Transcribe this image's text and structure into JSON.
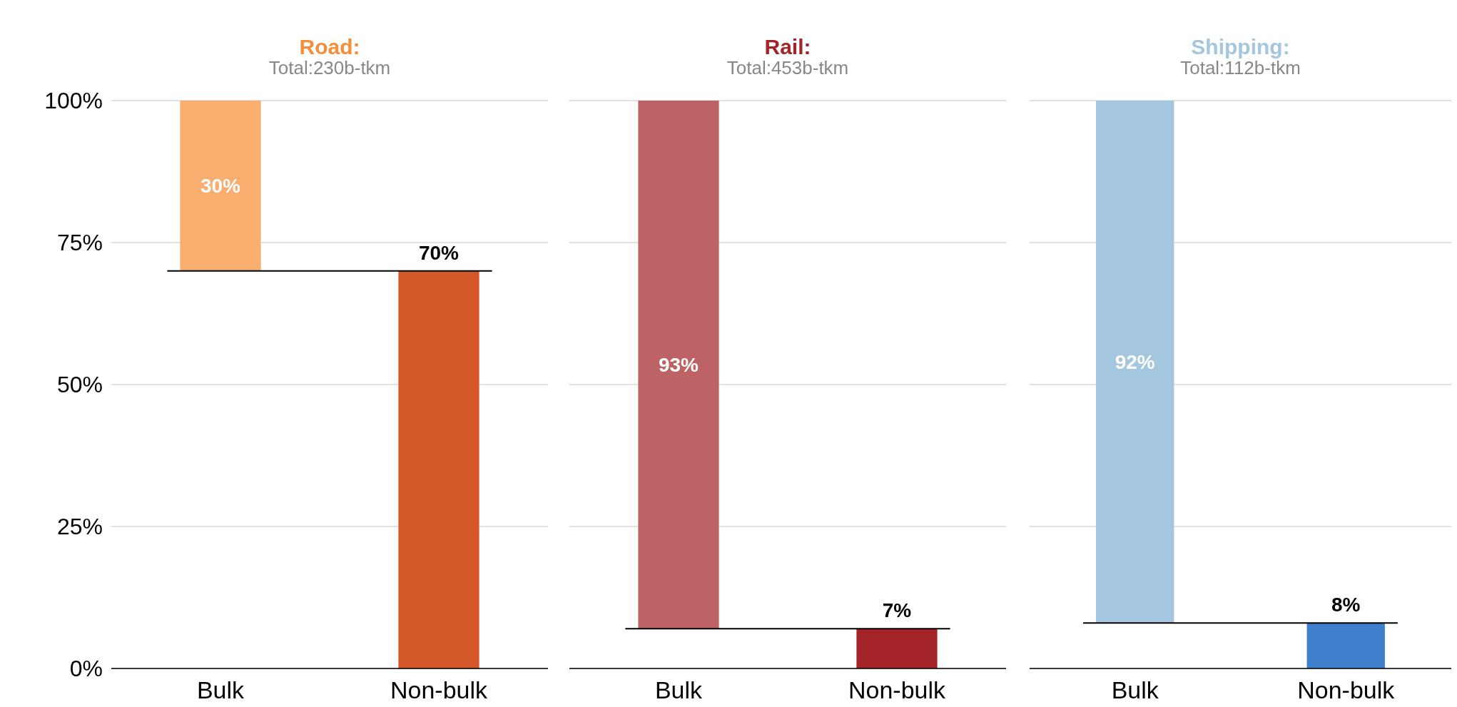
{
  "chart_data": [
    {
      "type": "bar",
      "title": "Road:",
      "subtitle": "Total:230b-tkm",
      "categories": [
        "Bulk",
        "Non-bulk"
      ],
      "values": [
        30,
        70
      ],
      "base": [
        70,
        0
      ],
      "colors": [
        "#f9ad6f",
        "#d4572a"
      ],
      "value_labels": [
        "30%",
        "70%"
      ],
      "ylim": [
        0,
        100
      ],
      "yticks": [
        {
          "value": 0,
          "label": "0%"
        },
        {
          "value": 25,
          "label": "25%"
        },
        {
          "value": 50,
          "label": "50%"
        },
        {
          "value": 75,
          "label": "75%"
        },
        {
          "value": 100,
          "label": "100%"
        }
      ],
      "grid": "y",
      "ref_lines": [
        {
          "axis": "y",
          "value": 70,
          "color": "#000000"
        }
      ]
    },
    {
      "type": "bar",
      "title": "Rail:",
      "subtitle": "Total:453b-tkm",
      "categories": [
        "Bulk",
        "Non-bulk"
      ],
      "values": [
        93,
        7
      ],
      "base": [
        7,
        0
      ],
      "colors": [
        "#bd6366",
        "#a32328"
      ],
      "value_labels": [
        "93%",
        "7%"
      ],
      "ylim": [
        0,
        100
      ],
      "yticks": [
        {
          "value": 0,
          "label": null
        },
        {
          "value": 25,
          "label": null
        },
        {
          "value": 50,
          "label": null
        },
        {
          "value": 75,
          "label": null
        },
        {
          "value": 100,
          "label": null
        }
      ],
      "grid": "y",
      "tick_labels": "x",
      "ref_lines": [
        {
          "axis": "y",
          "value": 7,
          "color": "#000000"
        }
      ]
    },
    {
      "type": "bar",
      "title": "Shipping:",
      "subtitle": "Total:112b-tkm",
      "categories": [
        "Bulk",
        "Non-bulk"
      ],
      "values": [
        92,
        8
      ],
      "base": [
        8,
        0
      ],
      "colors": [
        "#a4c6de",
        "#3f80cc"
      ],
      "value_labels": [
        "92%",
        "8%"
      ],
      "ylim": [
        0,
        100
      ],
      "yticks": [
        {
          "value": 0,
          "label": null
        },
        {
          "value": 25,
          "label": null
        },
        {
          "value": 50,
          "label": null
        },
        {
          "value": 75,
          "label": null
        },
        {
          "value": 100,
          "label": null
        }
      ],
      "grid": "y",
      "tick_labels": "x",
      "ref_lines": [
        {
          "axis": "y",
          "value": 8,
          "color": "#000000"
        }
      ]
    }
  ]
}
